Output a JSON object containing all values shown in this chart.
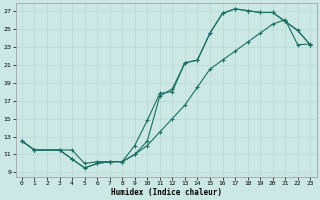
{
  "xlabel": "Humidex (Indice chaleur)",
  "bg_color": "#cce8e4",
  "grid_color": "#b8d8d4",
  "line_color": "#1a6e64",
  "xlim": [
    -0.5,
    23.5
  ],
  "ylim": [
    8.5,
    27.8
  ],
  "xticks": [
    0,
    1,
    2,
    3,
    4,
    5,
    6,
    7,
    8,
    9,
    10,
    11,
    12,
    13,
    14,
    15,
    16,
    17,
    18,
    19,
    20,
    21,
    22,
    23
  ],
  "yticks": [
    9,
    11,
    13,
    15,
    17,
    19,
    21,
    23,
    25,
    27
  ],
  "line_straight_x": [
    0,
    1,
    3,
    4,
    5,
    6,
    7,
    8,
    9,
    10,
    11,
    12,
    13,
    14,
    15,
    16,
    17,
    18,
    19,
    20,
    21,
    22,
    23
  ],
  "line_straight_y": [
    12.5,
    11.5,
    11.5,
    11.5,
    10.0,
    10.2,
    10.2,
    10.2,
    11.0,
    12.0,
    13.5,
    15.0,
    16.5,
    18.5,
    20.5,
    21.5,
    22.5,
    23.5,
    24.5,
    25.5,
    26.0,
    23.2,
    23.3
  ],
  "line_upper_x": [
    0,
    1,
    3,
    4,
    5,
    6,
    7,
    8,
    9,
    10,
    11,
    12,
    13,
    14,
    15,
    16,
    17,
    18,
    19,
    20,
    21,
    22,
    23
  ],
  "line_upper_y": [
    12.5,
    11.5,
    11.5,
    10.5,
    9.5,
    10.0,
    10.2,
    10.2,
    11.0,
    12.5,
    17.5,
    18.3,
    21.2,
    21.5,
    24.5,
    26.7,
    27.2,
    27.0,
    26.8,
    26.8,
    25.8,
    24.8,
    23.2
  ],
  "line_lower_x": [
    0,
    1,
    3,
    4,
    5,
    6,
    7,
    8,
    9,
    10,
    11,
    12,
    13,
    14,
    15,
    16,
    17,
    18,
    19,
    20,
    21,
    22,
    23
  ],
  "line_lower_y": [
    12.5,
    11.5,
    11.5,
    10.5,
    9.5,
    10.0,
    10.2,
    10.2,
    12.0,
    14.8,
    17.8,
    18.0,
    21.2,
    21.5,
    24.5,
    26.7,
    27.2,
    27.0,
    26.8,
    26.8,
    25.8,
    24.8,
    23.2
  ]
}
